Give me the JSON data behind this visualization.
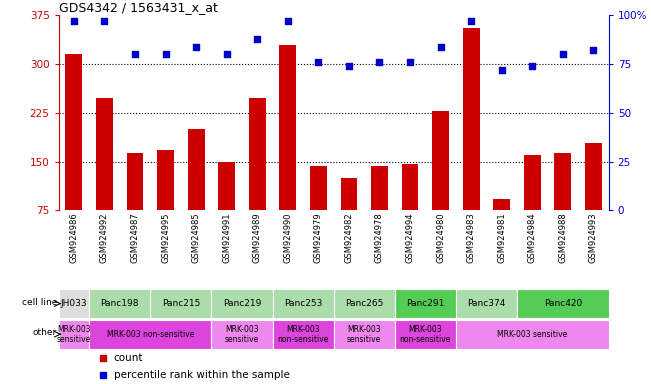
{
  "title": "GDS4342 / 1563431_x_at",
  "samples": [
    "GSM924986",
    "GSM924992",
    "GSM924987",
    "GSM924995",
    "GSM924985",
    "GSM924991",
    "GSM924989",
    "GSM924990",
    "GSM924979",
    "GSM924982",
    "GSM924978",
    "GSM924994",
    "GSM924980",
    "GSM924983",
    "GSM924981",
    "GSM924984",
    "GSM924988",
    "GSM924993"
  ],
  "counts": [
    315,
    248,
    163,
    168,
    200,
    150,
    248,
    330,
    143,
    125,
    143,
    147,
    228,
    355,
    93,
    160,
    163,
    178
  ],
  "percentiles": [
    97,
    97,
    80,
    80,
    84,
    80,
    88,
    97,
    76,
    74,
    76,
    76,
    84,
    97,
    72,
    74,
    80,
    82
  ],
  "ylim_left": [
    75,
    375
  ],
  "ylim_right": [
    0,
    100
  ],
  "yticks_left": [
    75,
    150,
    225,
    300,
    375
  ],
  "yticks_right": [
    0,
    25,
    50,
    75,
    100
  ],
  "bar_color": "#cc0000",
  "scatter_color": "#0000cc",
  "cell_lines": [
    {
      "label": "JH033",
      "start": 0,
      "end": 1,
      "color": "#dddddd"
    },
    {
      "label": "Panc198",
      "start": 1,
      "end": 3,
      "color": "#aaddaa"
    },
    {
      "label": "Panc215",
      "start": 3,
      "end": 5,
      "color": "#aaddaa"
    },
    {
      "label": "Panc219",
      "start": 5,
      "end": 7,
      "color": "#aaddaa"
    },
    {
      "label": "Panc253",
      "start": 7,
      "end": 9,
      "color": "#aaddaa"
    },
    {
      "label": "Panc265",
      "start": 9,
      "end": 11,
      "color": "#aaddaa"
    },
    {
      "label": "Panc291",
      "start": 11,
      "end": 13,
      "color": "#55cc55"
    },
    {
      "label": "Panc374",
      "start": 13,
      "end": 15,
      "color": "#aaddaa"
    },
    {
      "label": "Panc420",
      "start": 15,
      "end": 18,
      "color": "#55cc55"
    }
  ],
  "other_groups": [
    {
      "label": "MRK-003\nsensitive",
      "start": 0,
      "end": 1,
      "color": "#ee88ee"
    },
    {
      "label": "MRK-003 non-sensitive",
      "start": 1,
      "end": 5,
      "color": "#dd44dd"
    },
    {
      "label": "MRK-003\nsensitive",
      "start": 5,
      "end": 7,
      "color": "#ee88ee"
    },
    {
      "label": "MRK-003\nnon-sensitive",
      "start": 7,
      "end": 9,
      "color": "#dd44dd"
    },
    {
      "label": "MRK-003\nsensitive",
      "start": 9,
      "end": 11,
      "color": "#ee88ee"
    },
    {
      "label": "MRK-003\nnon-sensitive",
      "start": 11,
      "end": 13,
      "color": "#dd44dd"
    },
    {
      "label": "MRK-003 sensitive",
      "start": 13,
      "end": 18,
      "color": "#ee88ee"
    }
  ],
  "bg_color": "#ffffff",
  "tick_bg_color": "#cccccc",
  "left_axis_color": "#cc0000",
  "right_axis_color": "#0000cc"
}
